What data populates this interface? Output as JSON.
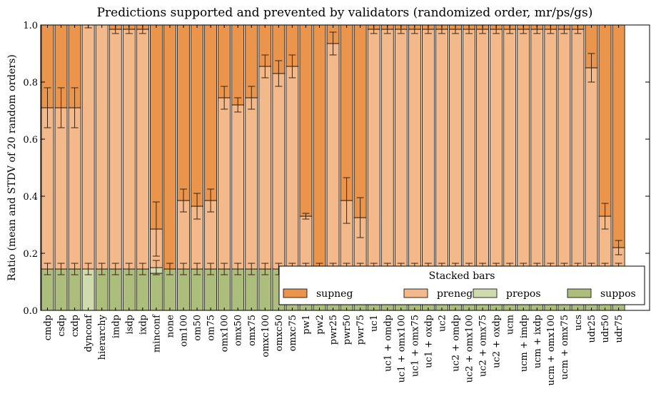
{
  "chart_data": {
    "type": "bar",
    "stacked": true,
    "title": "Predictions supported and prevented by validators (randomized order, mr/ps/gs)",
    "ylabel": "Ratio (mean and STDV of 20 random orders)",
    "xlabel": "",
    "ylim": [
      0,
      1.0
    ],
    "yticks": [
      "0.0",
      "0.2",
      "0.4",
      "0.6",
      "0.8",
      "1.0"
    ],
    "grid": false,
    "legend": {
      "title": "Stacked bars",
      "placement": "lower-right",
      "entries": [
        "supneg",
        "preneg",
        "prepos",
        "suppos"
      ]
    },
    "colors": {
      "supneg": "#eb944c",
      "preneg": "#f3b98a",
      "prepos": "#cfdbad",
      "suppos": "#adbd7c",
      "errorbar": "#3a2410",
      "edge": "#000000"
    },
    "categories": [
      "cmdp",
      "csdp",
      "cxdp",
      "dynconf",
      "hierarchy",
      "imdp",
      "isdp",
      "ixdp",
      "minconf",
      "none",
      "om100",
      "om50",
      "om75",
      "omx100",
      "omx50",
      "omx75",
      "omxc100",
      "omxc50",
      "omxc75",
      "pw1",
      "pw2",
      "pwr25",
      "pwr50",
      "pwr75",
      "uc1",
      "uc1 + omdp",
      "uc1 + omx100",
      "uc1 + omx75",
      "uc1 + oxdp",
      "uc2",
      "uc2 + omdp",
      "uc2 + omx100",
      "uc2 + omx75",
      "uc2 + oxdp",
      "ucm",
      "ucm + imdp",
      "ucm + ixdp",
      "ucm + omx100",
      "ucm + omx75",
      "ucs",
      "udr25",
      "udr50",
      "udr75"
    ],
    "series": [
      {
        "name": "suppos",
        "values": [
          0.145,
          0.145,
          0.145,
          0,
          0.145,
          0.145,
          0.145,
          0.145,
          0.13,
          0.145,
          0.145,
          0.145,
          0.145,
          0.145,
          0.145,
          0.145,
          0.145,
          0.145,
          0.145,
          0.145,
          0.145,
          0.145,
          0.145,
          0.145,
          0.145,
          0.145,
          0.145,
          0.145,
          0.145,
          0.145,
          0.145,
          0.145,
          0.145,
          0.145,
          0.145,
          0.145,
          0.145,
          0.145,
          0.145,
          0.145,
          0.145,
          0.145,
          0.145
        ],
        "errors": [
          0.02,
          0.02,
          0.02,
          0.02,
          0.02,
          0.02,
          0.02,
          0.02,
          0.025,
          0.02,
          0.02,
          0.02,
          0.02,
          0.02,
          0.02,
          0.02,
          0.02,
          0.02,
          0.02,
          0.02,
          0.02,
          0.02,
          0.02,
          0.02,
          0.02,
          0.02,
          0.02,
          0.02,
          0.02,
          0.02,
          0.02,
          0.02,
          0.02,
          0.02,
          0.02,
          0.02,
          0.02,
          0.02,
          0.02,
          0.02,
          0.02,
          0.02,
          0.02
        ]
      },
      {
        "name": "prepos",
        "values": [
          0,
          0,
          0,
          0.145,
          0,
          0,
          0,
          0,
          0.02,
          0,
          0,
          0,
          0,
          0,
          0,
          0,
          0,
          0,
          0,
          0,
          0,
          0,
          0,
          0,
          0,
          0,
          0,
          0,
          0,
          0,
          0,
          0,
          0,
          0,
          0,
          0,
          0,
          0,
          0,
          0,
          0,
          0,
          0
        ]
      },
      {
        "name": "preneg",
        "values": [
          0.565,
          0.565,
          0.565,
          0.855,
          0.855,
          0.84,
          0.84,
          0.84,
          0.135,
          0,
          0.24,
          0.22,
          0.24,
          0.6,
          0.575,
          0.6,
          0.71,
          0.685,
          0.71,
          0.185,
          0,
          0.79,
          0.24,
          0.18,
          0.84,
          0.84,
          0.84,
          0.84,
          0.84,
          0.84,
          0.84,
          0.84,
          0.84,
          0.84,
          0.84,
          0.84,
          0.84,
          0.84,
          0.84,
          0.84,
          0.705,
          0.185,
          0.075
        ],
        "errors": [
          0.07,
          0.07,
          0.07,
          0.01,
          0,
          0.015,
          0.015,
          0.015,
          0.095,
          0,
          0.04,
          0.045,
          0.04,
          0.04,
          0.025,
          0.04,
          0.04,
          0.045,
          0.04,
          0.01,
          0,
          0.04,
          0.08,
          0.07,
          0.015,
          0.015,
          0.015,
          0.015,
          0.015,
          0.015,
          0.015,
          0.015,
          0.015,
          0.015,
          0.015,
          0.015,
          0.015,
          0.015,
          0.015,
          0.015,
          0.05,
          0.045,
          0.025
        ]
      },
      {
        "name": "supneg",
        "values": [
          0.29,
          0.29,
          0.29,
          0,
          0,
          0.015,
          0.015,
          0.015,
          0.715,
          0.855,
          0.615,
          0.635,
          0.615,
          0.255,
          0.28,
          0.255,
          0.145,
          0.17,
          0.145,
          0.67,
          0.855,
          0.065,
          0.615,
          0.675,
          0.015,
          0.015,
          0.015,
          0.015,
          0.015,
          0.015,
          0.015,
          0.015,
          0.015,
          0.015,
          0.015,
          0.015,
          0.015,
          0.015,
          0.015,
          0.015,
          0.15,
          0.67,
          0.78
        ]
      }
    ]
  }
}
